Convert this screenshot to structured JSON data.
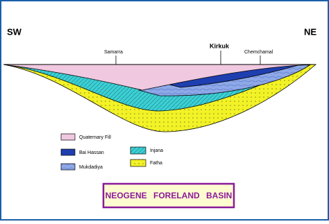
{
  "directions": {
    "left": "SW",
    "right": "NE"
  },
  "locations": [
    "Samarra",
    "Kirkuk",
    "Chemchamal"
  ],
  "legend": {
    "quaternary_fill": "Quaternary Fill",
    "bai_hassan": "Bai Hassan",
    "mukdadiya": "Mukdadiya",
    "injana": "Injana",
    "fatha": "Fatha"
  },
  "title": "NEOGENE FORELAND BASIN"
}
